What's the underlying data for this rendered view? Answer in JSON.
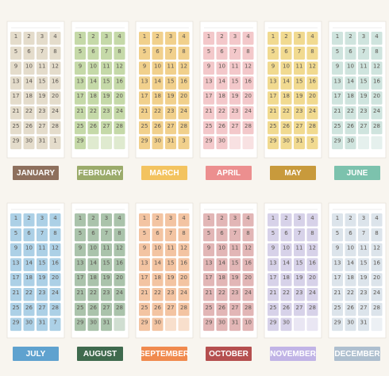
{
  "months": [
    {
      "name": "JANUARY",
      "tile": "#e4dccb",
      "label": "#8e705d",
      "days": [
        "1",
        "2",
        "3",
        "4",
        "5",
        "6",
        "7",
        "8",
        "9",
        "10",
        "11",
        "12",
        "13",
        "14",
        "15",
        "16",
        "17",
        "18",
        "19",
        "20",
        "21",
        "22",
        "23",
        "24",
        "25",
        "26",
        "27",
        "28",
        "29",
        "30",
        "31",
        "1"
      ]
    },
    {
      "name": "FEBRUARY",
      "tile": "#c5d9a8",
      "label": "#9bab6b",
      "days": [
        "1",
        "2",
        "3",
        "4",
        "5",
        "6",
        "7",
        "8",
        "9",
        "10",
        "11",
        "12",
        "13",
        "14",
        "15",
        "16",
        "17",
        "18",
        "19",
        "20",
        "21",
        "22",
        "23",
        "24",
        "25",
        "26",
        "27",
        "28",
        "29"
      ]
    },
    {
      "name": "MARCH",
      "tile": "#f1d08c",
      "label": "#f3c35f",
      "days": [
        "1",
        "2",
        "3",
        "4",
        "5",
        "6",
        "7",
        "8",
        "9",
        "10",
        "11",
        "12",
        "13",
        "14",
        "15",
        "16",
        "17",
        "18",
        "19",
        "20",
        "21",
        "22",
        "23",
        "24",
        "25",
        "26",
        "27",
        "28",
        "29",
        "30",
        "31",
        "3"
      ]
    },
    {
      "name": "APRIL",
      "tile": "#f3c8ca",
      "label": "#ec8f8f",
      "days": [
        "1",
        "2",
        "3",
        "4",
        "5",
        "6",
        "7",
        "8",
        "9",
        "10",
        "11",
        "12",
        "13",
        "14",
        "15",
        "16",
        "17",
        "18",
        "19",
        "20",
        "21",
        "22",
        "23",
        "24",
        "25",
        "26",
        "27",
        "28",
        "29",
        "30"
      ]
    },
    {
      "name": "MAY",
      "tile": "#f1da90",
      "label": "#c89a3c",
      "days": [
        "1",
        "2",
        "3",
        "4",
        "5",
        "6",
        "7",
        "8",
        "9",
        "10",
        "11",
        "12",
        "13",
        "14",
        "15",
        "16",
        "17",
        "18",
        "19",
        "20",
        "21",
        "22",
        "23",
        "24",
        "25",
        "26",
        "27",
        "28",
        "29",
        "30",
        "31",
        "5"
      ]
    },
    {
      "name": "JUNE",
      "tile": "#cfe4de",
      "label": "#7cc2ad",
      "days": [
        "1",
        "2",
        "3",
        "4",
        "5",
        "6",
        "7",
        "8",
        "9",
        "10",
        "11",
        "12",
        "13",
        "14",
        "15",
        "16",
        "17",
        "18",
        "19",
        "20",
        "21",
        "22",
        "23",
        "24",
        "25",
        "26",
        "27",
        "28",
        "29",
        "30"
      ]
    },
    {
      "name": "JULY",
      "tile": "#acd0e6",
      "label": "#5fa2cf",
      "days": [
        "1",
        "2",
        "3",
        "4",
        "5",
        "6",
        "7",
        "8",
        "9",
        "10",
        "11",
        "12",
        "13",
        "14",
        "15",
        "16",
        "17",
        "18",
        "19",
        "20",
        "21",
        "22",
        "23",
        "24",
        "25",
        "26",
        "27",
        "28",
        "29",
        "30",
        "31",
        "7"
      ]
    },
    {
      "name": "AUGUST",
      "tile": "#aac3ab",
      "label": "#3f6a4e",
      "days": [
        "1",
        "2",
        "3",
        "4",
        "5",
        "6",
        "7",
        "8",
        "9",
        "10",
        "11",
        "12",
        "13",
        "14",
        "15",
        "16",
        "17",
        "18",
        "19",
        "20",
        "21",
        "22",
        "23",
        "24",
        "25",
        "26",
        "27",
        "28",
        "29",
        "30",
        "31"
      ]
    },
    {
      "name": "SEPTEMBER",
      "tile": "#f3c4a2",
      "label": "#f08a4e",
      "days": [
        "1",
        "2",
        "3",
        "4",
        "5",
        "6",
        "7",
        "8",
        "9",
        "10",
        "11",
        "12",
        "13",
        "14",
        "15",
        "16",
        "17",
        "18",
        "19",
        "20",
        "21",
        "22",
        "23",
        "24",
        "25",
        "26",
        "27",
        "28",
        "29",
        "30"
      ]
    },
    {
      "name": "OCTOBER",
      "tile": "#e2b6b6",
      "label": "#b54f4f",
      "days": [
        "1",
        "2",
        "3",
        "4",
        "5",
        "6",
        "7",
        "8",
        "9",
        "10",
        "11",
        "12",
        "13",
        "14",
        "15",
        "16",
        "17",
        "18",
        "19",
        "20",
        "21",
        "22",
        "23",
        "24",
        "25",
        "26",
        "27",
        "28",
        "29",
        "30",
        "31",
        "10"
      ]
    },
    {
      "name": "NOVEMBER",
      "tile": "#d7d2e9",
      "label": "#c1b4e6",
      "days": [
        "1",
        "2",
        "3",
        "4",
        "5",
        "6",
        "7",
        "8",
        "9",
        "10",
        "11",
        "12",
        "13",
        "14",
        "15",
        "16",
        "17",
        "18",
        "19",
        "20",
        "21",
        "22",
        "23",
        "24",
        "25",
        "26",
        "27",
        "28",
        "29",
        "30"
      ]
    },
    {
      "name": "DECEMBER",
      "tile": "#dce4eb",
      "label": "#aebfcf",
      "days": [
        "1",
        "2",
        "3",
        "4",
        "5",
        "6",
        "7",
        "8",
        "9",
        "10",
        "11",
        "12",
        "13",
        "14",
        "15",
        "16",
        "17",
        "18",
        "19",
        "20",
        "21",
        "22",
        "23",
        "24",
        "25",
        "26",
        "27",
        "28",
        "29",
        "30",
        "31"
      ]
    }
  ]
}
